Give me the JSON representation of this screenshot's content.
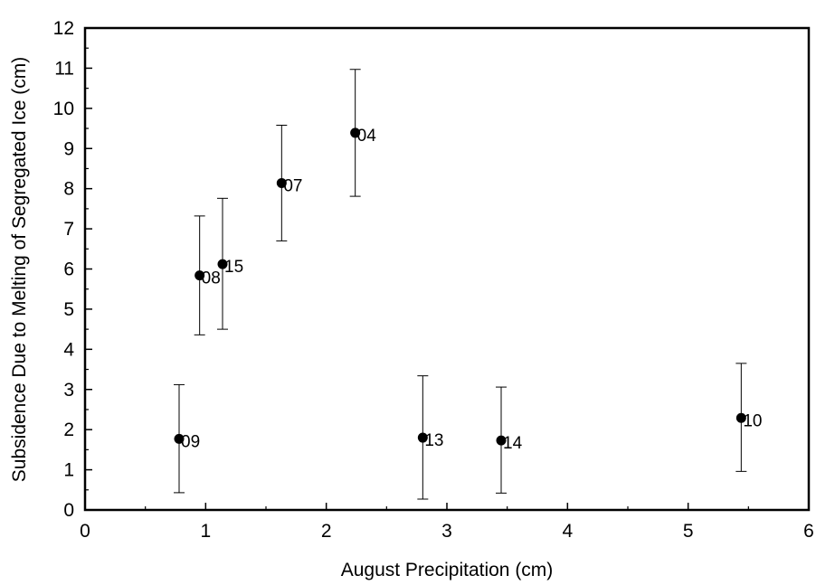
{
  "chart_data": {
    "type": "scatter",
    "title": "",
    "xlabel": "August Precipitation (cm)",
    "ylabel": "Subsidence Due to Melting of Segregated Ice (cm)",
    "xlim": [
      0,
      6
    ],
    "ylim": [
      0,
      12
    ],
    "xticks": [
      0,
      1,
      2,
      3,
      4,
      5,
      6
    ],
    "yticks": [
      0,
      1,
      2,
      3,
      4,
      5,
      6,
      7,
      8,
      9,
      10,
      11,
      12
    ],
    "grid": false,
    "legend": "none",
    "marker_color": "#000000",
    "points": [
      {
        "label": "09",
        "x": 0.78,
        "y": 1.77,
        "err_low": 0.43,
        "err_high": 3.12
      },
      {
        "label": "08",
        "x": 0.95,
        "y": 5.84,
        "err_low": 4.36,
        "err_high": 7.32
      },
      {
        "label": "15",
        "x": 1.14,
        "y": 6.12,
        "err_low": 4.5,
        "err_high": 7.76
      },
      {
        "label": "07",
        "x": 1.63,
        "y": 8.14,
        "err_low": 6.7,
        "err_high": 9.58
      },
      {
        "label": "04",
        "x": 2.24,
        "y": 9.39,
        "err_low": 7.81,
        "err_high": 10.97
      },
      {
        "label": "13",
        "x": 2.8,
        "y": 1.8,
        "err_low": 0.27,
        "err_high": 3.34
      },
      {
        "label": "14",
        "x": 3.45,
        "y": 1.73,
        "err_low": 0.42,
        "err_high": 3.06
      },
      {
        "label": "10",
        "x": 5.44,
        "y": 2.29,
        "err_low": 0.96,
        "err_high": 3.65
      }
    ]
  }
}
